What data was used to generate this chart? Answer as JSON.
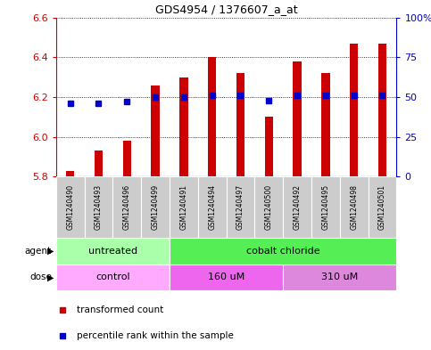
{
  "title": "GDS4954 / 1376607_a_at",
  "samples": [
    "GSM1240490",
    "GSM1240493",
    "GSM1240496",
    "GSM1240499",
    "GSM1240491",
    "GSM1240494",
    "GSM1240497",
    "GSM1240500",
    "GSM1240492",
    "GSM1240495",
    "GSM1240498",
    "GSM1240501"
  ],
  "transformed_counts": [
    5.83,
    5.93,
    5.98,
    6.26,
    6.3,
    6.4,
    6.32,
    6.1,
    6.38,
    6.32,
    6.47,
    6.47
  ],
  "percentile_ranks": [
    46,
    46,
    47,
    50,
    50,
    51,
    51,
    48,
    51,
    51,
    51,
    51
  ],
  "ylim_left": [
    5.8,
    6.6
  ],
  "ylim_right": [
    0,
    100
  ],
  "yticks_left": [
    5.8,
    6.0,
    6.2,
    6.4,
    6.6
  ],
  "yticks_right": [
    0,
    25,
    50,
    75,
    100
  ],
  "bar_color": "#CC0000",
  "dot_color": "#0000CC",
  "bar_bottom": 5.8,
  "agent_groups": [
    {
      "label": "untreated",
      "start": 0,
      "end": 4,
      "color": "#AAFFAA"
    },
    {
      "label": "cobalt chloride",
      "start": 4,
      "end": 12,
      "color": "#55EE55"
    }
  ],
  "dose_groups": [
    {
      "label": "control",
      "start": 0,
      "end": 4,
      "color": "#FFAAFF"
    },
    {
      "label": "160 uM",
      "start": 4,
      "end": 8,
      "color": "#EE66EE"
    },
    {
      "label": "310 uM",
      "start": 8,
      "end": 12,
      "color": "#DD88DD"
    }
  ],
  "background_color": "#ffffff",
  "label_color_left": "#CC0000",
  "label_color_right": "#0000CC",
  "sample_box_color": "#CCCCCC"
}
